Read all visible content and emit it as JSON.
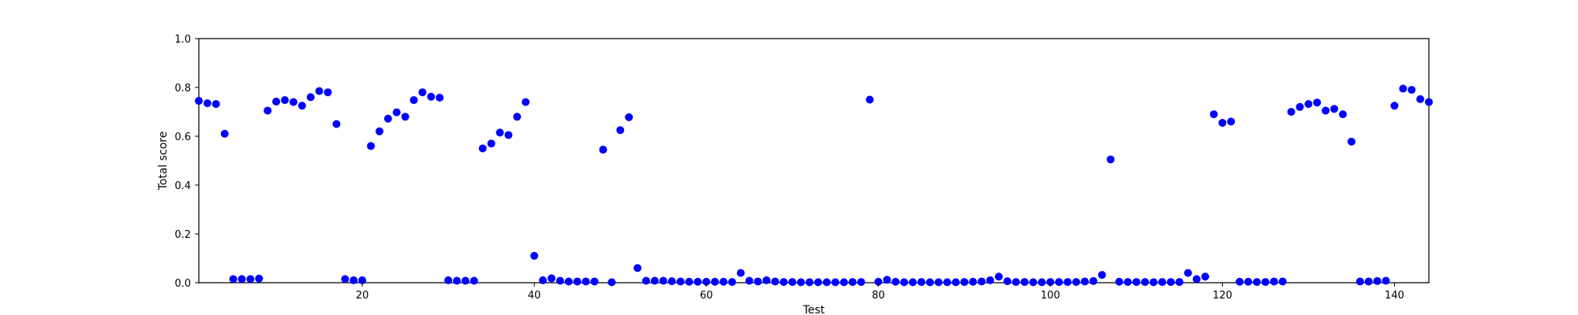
{
  "chart_data": {
    "type": "scatter",
    "xlabel": "Test",
    "ylabel": "Total score",
    "xlim": [
      1,
      144
    ],
    "ylim": [
      0.0,
      1.0
    ],
    "x_ticks": [
      20,
      40,
      60,
      80,
      100,
      120,
      140
    ],
    "y_ticks": [
      0.0,
      0.2,
      0.4,
      0.6,
      0.8,
      1.0
    ],
    "x_tick_labels": [
      "20",
      "40",
      "60",
      "80",
      "100",
      "120",
      "140"
    ],
    "y_tick_labels": [
      "0.0",
      "0.2",
      "0.4",
      "0.6",
      "0.8",
      "1.0"
    ],
    "grid": false,
    "marker_color": "#0000ff",
    "series": [
      {
        "x": [
          1,
          2,
          3,
          4,
          5,
          6,
          7,
          8,
          9,
          10,
          11,
          12,
          13,
          14,
          15,
          16,
          17,
          18,
          19,
          20,
          21,
          22,
          23,
          24,
          25,
          26,
          27,
          28,
          29,
          30,
          31,
          32,
          33,
          34,
          35,
          36,
          37,
          38,
          39,
          40,
          41,
          42,
          43,
          44,
          45,
          46,
          47,
          48,
          49,
          50,
          51,
          52,
          53,
          54,
          55,
          56,
          57,
          58,
          59,
          60,
          61,
          62,
          63,
          64,
          65,
          66,
          67,
          68,
          69,
          70,
          71,
          72,
          73,
          74,
          75,
          76,
          77,
          78,
          79,
          80,
          81,
          82,
          83,
          84,
          85,
          86,
          87,
          88,
          89,
          90,
          91,
          92,
          93,
          94,
          95,
          96,
          97,
          98,
          99,
          100,
          101,
          102,
          103,
          104,
          105,
          106,
          107,
          108,
          109,
          110,
          111,
          112,
          113,
          114,
          115,
          116,
          117,
          118,
          119,
          120,
          121,
          122,
          123,
          124,
          125,
          126,
          127,
          128,
          129,
          130,
          131,
          132,
          133,
          134,
          135,
          136,
          137,
          138,
          139,
          140,
          141,
          142,
          143,
          144
        ],
        "y": [
          0.745,
          0.735,
          0.732,
          0.61,
          0.015,
          0.015,
          0.015,
          0.017,
          0.705,
          0.742,
          0.748,
          0.74,
          0.725,
          0.76,
          0.785,
          0.78,
          0.65,
          0.015,
          0.01,
          0.01,
          0.56,
          0.62,
          0.672,
          0.698,
          0.68,
          0.748,
          0.78,
          0.762,
          0.758,
          0.01,
          0.008,
          0.008,
          0.008,
          0.55,
          0.57,
          0.615,
          0.605,
          0.68,
          0.74,
          0.11,
          0.01,
          0.018,
          0.008,
          0.005,
          0.005,
          0.005,
          0.005,
          0.545,
          0.002,
          0.625,
          0.678,
          0.06,
          0.008,
          0.008,
          0.008,
          0.006,
          0.005,
          0.004,
          0.004,
          0.004,
          0.004,
          0.004,
          0.003,
          0.04,
          0.008,
          0.005,
          0.01,
          0.005,
          0.003,
          0.003,
          0.002,
          0.002,
          0.002,
          0.002,
          0.002,
          0.002,
          0.003,
          0.003,
          0.75,
          0.004,
          0.012,
          0.004,
          0.002,
          0.002,
          0.003,
          0.002,
          0.002,
          0.002,
          0.002,
          0.003,
          0.004,
          0.005,
          0.01,
          0.025,
          0.006,
          0.003,
          0.003,
          0.002,
          0.002,
          0.003,
          0.003,
          0.003,
          0.003,
          0.005,
          0.007,
          0.032,
          0.505,
          0.004,
          0.003,
          0.003,
          0.003,
          0.002,
          0.003,
          0.003,
          0.003,
          0.04,
          0.015,
          0.025,
          0.69,
          0.655,
          0.66,
          0.004,
          0.004,
          0.003,
          0.003,
          0.005,
          0.005,
          0.7,
          0.72,
          0.732,
          0.738,
          0.705,
          0.712,
          0.69,
          0.578,
          0.005,
          0.005,
          0.007,
          0.008,
          0.725,
          0.795,
          0.79,
          0.752,
          0.74
        ]
      }
    ]
  }
}
